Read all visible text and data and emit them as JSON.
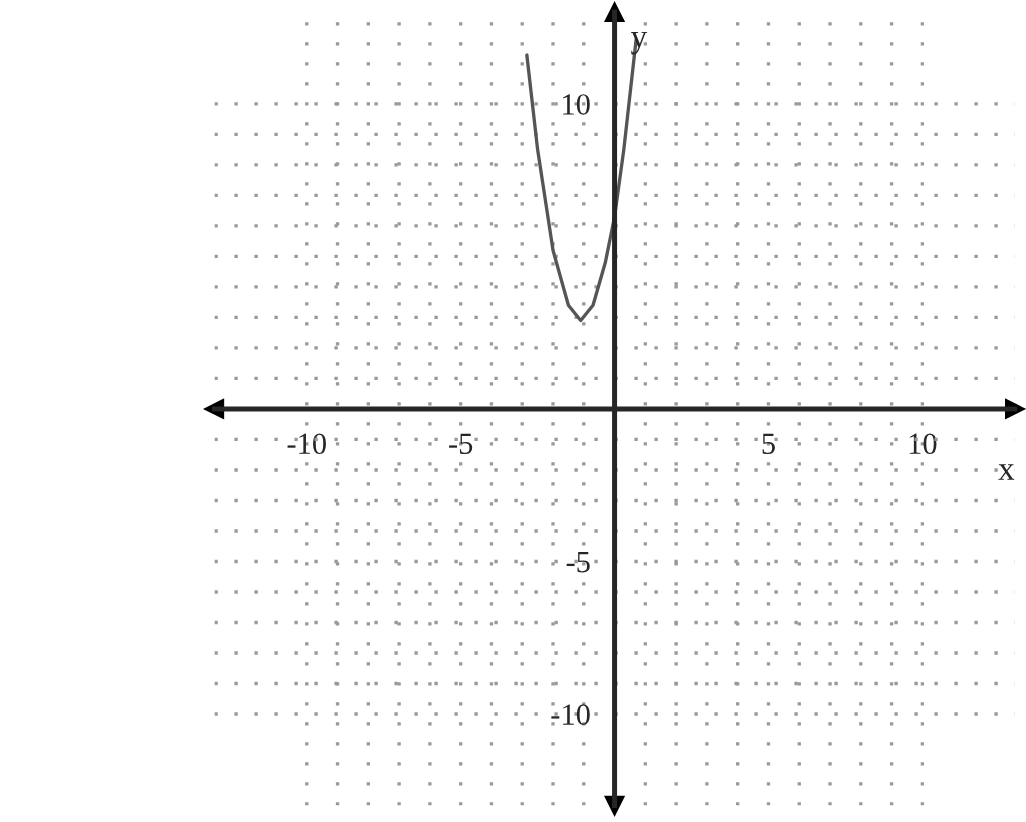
{
  "chart_data": {
    "type": "line",
    "xlabel": "x",
    "ylabel": "y",
    "x": [
      -2.85,
      -2.5,
      -2,
      -1.5,
      -1.1,
      -0.7,
      -0.3,
      0,
      0.3,
      0.7
    ],
    "series": [
      {
        "color": "#555555",
        "values": [
          11.6,
          8.5,
          5.2,
          3.4,
          2.9,
          3.4,
          4.8,
          6.3,
          8.5,
          12.1
        ]
      }
    ],
    "xlim": [
      -13,
      13
    ],
    "ylim": [
      -13,
      13
    ],
    "xticks": [
      {
        "value": -10,
        "label": "-10"
      },
      {
        "value": -9,
        "label": null
      },
      {
        "value": -8,
        "label": null
      },
      {
        "value": -7,
        "label": null
      },
      {
        "value": -6,
        "label": null
      },
      {
        "value": -5,
        "label": "-5"
      },
      {
        "value": -4,
        "label": null
      },
      {
        "value": -3,
        "label": null
      },
      {
        "value": -2,
        "label": null
      },
      {
        "value": -1,
        "label": null
      },
      {
        "value": 1,
        "label": null
      },
      {
        "value": 2,
        "label": null
      },
      {
        "value": 3,
        "label": null
      },
      {
        "value": 4,
        "label": null
      },
      {
        "value": 5,
        "label": "5"
      },
      {
        "value": 6,
        "label": null
      },
      {
        "value": 7,
        "label": null
      },
      {
        "value": 8,
        "label": null
      },
      {
        "value": 9,
        "label": null
      },
      {
        "value": 10,
        "label": "10"
      }
    ],
    "yticks": [
      {
        "value": -10,
        "label": "-10"
      },
      {
        "value": -9,
        "label": null
      },
      {
        "value": -8,
        "label": null
      },
      {
        "value": -7,
        "label": null
      },
      {
        "value": -6,
        "label": null
      },
      {
        "value": -5,
        "label": "-5"
      },
      {
        "value": -4,
        "label": null
      },
      {
        "value": -3,
        "label": null
      },
      {
        "value": -2,
        "label": null
      },
      {
        "value": -1,
        "label": null
      },
      {
        "value": 1,
        "label": null
      },
      {
        "value": 2,
        "label": null
      },
      {
        "value": 3,
        "label": null
      },
      {
        "value": 4,
        "label": null
      },
      {
        "value": 5,
        "label": null
      },
      {
        "value": 6,
        "label": null
      },
      {
        "value": 7,
        "label": null
      },
      {
        "value": 8,
        "label": null
      },
      {
        "value": 9,
        "label": null
      },
      {
        "value": 10,
        "label": "10"
      }
    ],
    "grid": true,
    "marker": "none",
    "line_style": "solid"
  }
}
